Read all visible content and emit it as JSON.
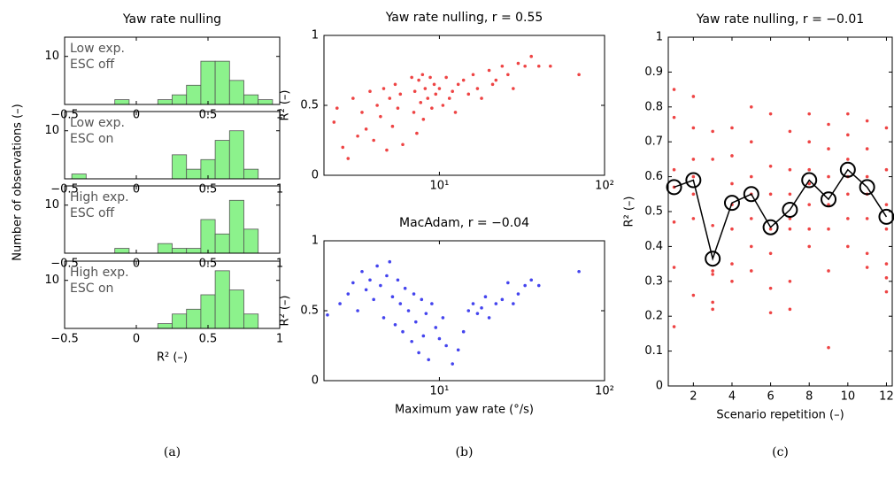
{
  "chart_data": [
    {
      "type": "histogram",
      "title": "Yaw rate nulling",
      "ylabel": "Number of observations (–)",
      "text": [
        "Low exp.",
        "ESC off"
      ],
      "bins": [
        -0.45,
        -0.35,
        -0.25,
        -0.15,
        -0.05,
        0.05,
        0.15,
        0.25,
        0.35,
        0.45,
        0.55,
        0.65,
        0.75,
        0.85,
        0.95
      ],
      "counts": [
        0,
        0,
        0,
        1,
        0,
        0,
        1,
        2,
        4,
        9,
        9,
        5,
        2,
        1
      ],
      "color": "#8cf28c",
      "xlim": [
        -0.5,
        1
      ],
      "xticks": [
        {
          "value": -0.5,
          "label": "−0.5"
        },
        0,
        0.5,
        1
      ],
      "ylim": [
        0,
        14
      ],
      "yticks": [
        10
      ]
    },
    {
      "type": "histogram",
      "text": [
        "Low exp.",
        "ESC on"
      ],
      "bins": [
        -0.45,
        -0.35,
        -0.25,
        -0.15,
        -0.05,
        0.05,
        0.15,
        0.25,
        0.35,
        0.45,
        0.55,
        0.65,
        0.75,
        0.85,
        0.95
      ],
      "counts": [
        1,
        0,
        0,
        0,
        0,
        0,
        0,
        5,
        2,
        4,
        8,
        10,
        2,
        0
      ],
      "color": "#8cf28c",
      "xlim": [
        -0.5,
        1
      ],
      "xticks": [
        {
          "value": -0.5,
          "label": "−0.5"
        },
        0,
        0.5,
        1
      ],
      "ylim": [
        0,
        14
      ],
      "yticks": [
        10
      ]
    },
    {
      "type": "histogram",
      "text": [
        "High exp.",
        "ESC off"
      ],
      "bins": [
        -0.45,
        -0.35,
        -0.25,
        -0.15,
        -0.05,
        0.05,
        0.15,
        0.25,
        0.35,
        0.45,
        0.55,
        0.65,
        0.75,
        0.85,
        0.95
      ],
      "counts": [
        0,
        0,
        0,
        1,
        0,
        0,
        2,
        1,
        1,
        7,
        4,
        11,
        5,
        0
      ],
      "color": "#8cf28c",
      "xlim": [
        -0.5,
        1
      ],
      "xticks": [
        {
          "value": -0.5,
          "label": "−0.5"
        },
        0,
        0.5,
        1
      ],
      "ylim": [
        0,
        14
      ],
      "yticks": [
        10
      ]
    },
    {
      "type": "histogram",
      "text": [
        "High exp.",
        "ESC on"
      ],
      "xlabel": "R² (–)",
      "caption": "(a)",
      "bins": [
        -0.45,
        -0.35,
        -0.25,
        -0.15,
        -0.05,
        0.05,
        0.15,
        0.25,
        0.35,
        0.45,
        0.55,
        0.65,
        0.75,
        0.85,
        0.95
      ],
      "counts": [
        0,
        0,
        0,
        0,
        0,
        0,
        1,
        3,
        4,
        7,
        12,
        8,
        3,
        0
      ],
      "color": "#8cf28c",
      "xlim": [
        -0.5,
        1
      ],
      "xticks": [
        {
          "value": -0.5,
          "label": "−0.5"
        },
        0,
        0.5,
        1
      ],
      "ylim": [
        0,
        14
      ],
      "yticks": [
        10
      ]
    },
    {
      "type": "scatter",
      "title": "Yaw rate nulling, r = 0.55",
      "ylabel": "R² (–)",
      "color": "#ee4444",
      "xscale": "log",
      "x": [
        2.3,
        2.4,
        2.6,
        2.8,
        3.0,
        3.2,
        3.4,
        3.6,
        3.8,
        4.0,
        4.2,
        4.4,
        4.6,
        4.8,
        5.0,
        5.2,
        5.4,
        5.6,
        5.8,
        6.0,
        6.8,
        7.0,
        7.1,
        7.3,
        7.5,
        7.7,
        7.9,
        8.0,
        8.2,
        8.5,
        8.8,
        9.0,
        9.3,
        9.5,
        10,
        10.5,
        11,
        11.5,
        12,
        12.5,
        13,
        14,
        15,
        16,
        17,
        18,
        20,
        21,
        22,
        24,
        26,
        28,
        30,
        33,
        36,
        40,
        47,
        70
      ],
      "y": [
        0.38,
        0.48,
        0.2,
        0.12,
        0.55,
        0.28,
        0.45,
        0.33,
        0.6,
        0.25,
        0.5,
        0.42,
        0.62,
        0.18,
        0.55,
        0.35,
        0.65,
        0.48,
        0.58,
        0.22,
        0.7,
        0.45,
        0.6,
        0.3,
        0.68,
        0.52,
        0.72,
        0.4,
        0.62,
        0.55,
        0.7,
        0.48,
        0.65,
        0.58,
        0.62,
        0.5,
        0.7,
        0.55,
        0.6,
        0.45,
        0.65,
        0.68,
        0.58,
        0.72,
        0.62,
        0.55,
        0.75,
        0.65,
        0.68,
        0.78,
        0.72,
        0.62,
        0.8,
        0.78,
        0.85,
        0.78,
        0.78,
        0.72
      ],
      "xlim": [
        2,
        100
      ],
      "xticks": [
        {
          "value": 10,
          "label": "10¹"
        },
        {
          "value": 100,
          "label": "10²"
        }
      ],
      "ylim": [
        0,
        1
      ],
      "yticks": [
        0,
        0.5,
        1
      ]
    },
    {
      "type": "scatter",
      "title": "MacAdam, r = −0.04",
      "ylabel": "R² (–)",
      "xlabel": "Maximum yaw rate (°/s)",
      "caption": "(b)",
      "color": "#4444ee",
      "xscale": "log",
      "x": [
        2.1,
        2.5,
        2.8,
        3.0,
        3.2,
        3.4,
        3.6,
        3.8,
        4.0,
        4.2,
        4.4,
        4.6,
        4.8,
        5.0,
        5.2,
        5.4,
        5.6,
        5.8,
        6.0,
        6.2,
        6.5,
        6.8,
        7.0,
        7.2,
        7.5,
        7.8,
        8.0,
        8.3,
        8.6,
        9.0,
        9.5,
        10,
        10.5,
        11,
        12,
        13,
        14,
        15,
        16,
        17,
        18,
        19,
        20,
        22,
        24,
        26,
        28,
        30,
        33,
        36,
        40,
        70
      ],
      "y": [
        0.47,
        0.55,
        0.62,
        0.7,
        0.5,
        0.78,
        0.65,
        0.72,
        0.58,
        0.82,
        0.68,
        0.45,
        0.75,
        0.85,
        0.6,
        0.4,
        0.72,
        0.55,
        0.35,
        0.66,
        0.5,
        0.28,
        0.62,
        0.42,
        0.2,
        0.58,
        0.32,
        0.48,
        0.15,
        0.55,
        0.38,
        0.3,
        0.45,
        0.25,
        0.12,
        0.22,
        0.35,
        0.5,
        0.55,
        0.48,
        0.52,
        0.6,
        0.45,
        0.55,
        0.58,
        0.7,
        0.55,
        0.62,
        0.68,
        0.72,
        0.68,
        0.78
      ],
      "xlim": [
        2,
        100
      ],
      "xticks": [
        {
          "value": 10,
          "label": "10¹"
        },
        {
          "value": 100,
          "label": "10²"
        }
      ],
      "ylim": [
        0,
        1
      ],
      "yticks": [
        0,
        0.5,
        1
      ]
    },
    {
      "type": "scatter",
      "title": "Yaw rate nulling, r = −0.01",
      "ylabel": "R² (–)",
      "xlabel": "Scenario repetition (–)",
      "caption": "(c)",
      "color": "#ee4444",
      "x": [
        1,
        1,
        1,
        1,
        1,
        1,
        1,
        2,
        2,
        2,
        2,
        2,
        2,
        2,
        3,
        3,
        3,
        3,
        3,
        3,
        3,
        4,
        4,
        4,
        4,
        4,
        4,
        4,
        5,
        5,
        5,
        5,
        5,
        5,
        5,
        6,
        6,
        6,
        6,
        6,
        6,
        6,
        7,
        7,
        7,
        7,
        7,
        7,
        7,
        8,
        8,
        8,
        8,
        8,
        8,
        8,
        9,
        9,
        9,
        9,
        9,
        9,
        9,
        10,
        10,
        10,
        10,
        10,
        10,
        10,
        11,
        11,
        11,
        11,
        11,
        11,
        11,
        12,
        12,
        12,
        12,
        12,
        12,
        12
      ],
      "y": [
        0.85,
        0.77,
        0.62,
        0.57,
        0.47,
        0.34,
        0.17,
        0.83,
        0.74,
        0.65,
        0.6,
        0.55,
        0.48,
        0.26,
        0.73,
        0.65,
        0.46,
        0.33,
        0.24,
        0.22,
        0.32,
        0.74,
        0.66,
        0.58,
        0.52,
        0.45,
        0.35,
        0.3,
        0.8,
        0.7,
        0.6,
        0.55,
        0.48,
        0.4,
        0.33,
        0.78,
        0.63,
        0.55,
        0.45,
        0.38,
        0.28,
        0.21,
        0.73,
        0.62,
        0.55,
        0.48,
        0.45,
        0.3,
        0.22,
        0.78,
        0.7,
        0.62,
        0.58,
        0.52,
        0.45,
        0.4,
        0.75,
        0.68,
        0.6,
        0.52,
        0.45,
        0.33,
        0.11,
        0.78,
        0.72,
        0.65,
        0.6,
        0.55,
        0.48,
        0.4,
        0.76,
        0.68,
        0.6,
        0.55,
        0.48,
        0.34,
        0.38,
        0.74,
        0.62,
        0.52,
        0.45,
        0.35,
        0.31,
        0.27
      ],
      "line": {
        "x": [
          1,
          2,
          3,
          4,
          5,
          6,
          7,
          8,
          9,
          10,
          11,
          12
        ],
        "values": [
          0.57,
          0.59,
          0.365,
          0.525,
          0.55,
          0.455,
          0.505,
          0.59,
          0.535,
          0.62,
          0.57,
          0.485
        ],
        "color": "#000000"
      },
      "xlim": [
        0.7,
        12.3
      ],
      "xticks": [
        2,
        4,
        6,
        8,
        10,
        12
      ],
      "ylim": [
        0,
        1
      ],
      "yticks": [
        0,
        0.1,
        0.2,
        0.3,
        0.4,
        0.5,
        0.6,
        0.7,
        0.8,
        0.9,
        1
      ]
    }
  ]
}
